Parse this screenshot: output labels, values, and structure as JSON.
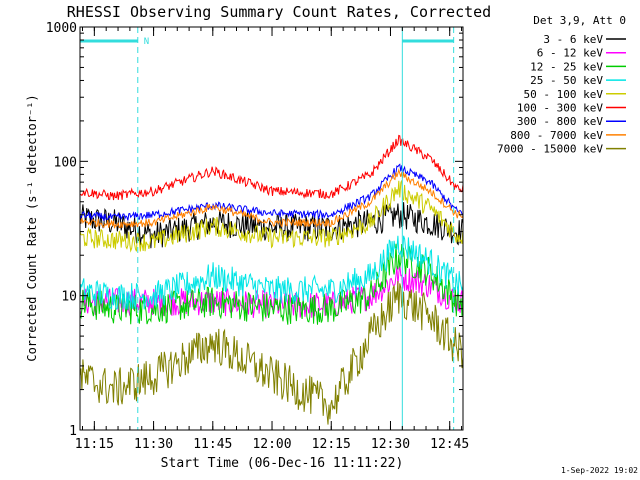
{
  "chart_data": {
    "type": "line",
    "title": "RHESSI Observing Summary Count Rates, Corrected",
    "xlabel": "Start Time (06-Dec-16 11:11:22)",
    "ylabel": "Corrected Count Rate (s⁻¹ detector⁻¹)",
    "y_scale": "log",
    "ylim": [
      1,
      1000
    ],
    "xlim_minutes_after_11_11_22": [
      0,
      97
    ],
    "x_ticks": [
      "11:15",
      "11:30",
      "11:45",
      "12:00",
      "12:15",
      "12:30",
      "12:45"
    ],
    "y_ticks": [
      "1",
      "10",
      "100",
      "1000"
    ],
    "legend_title": "Det 3,9, Att 0",
    "legend_position": "right",
    "footer": "1-Sep-2022 19:02",
    "flag_label": "N",
    "series": [
      {
        "name": "3 - 6 keV",
        "color": "#000000",
        "x": [
          "11:11",
          "11:20",
          "11:30",
          "11:45",
          "12:00",
          "12:15",
          "12:25",
          "12:32",
          "12:40",
          "12:47"
        ],
        "values": [
          38,
          35,
          28,
          35,
          32,
          32,
          35,
          40,
          35,
          30
        ]
      },
      {
        "name": "6 - 12 keV",
        "color": "#ff00ff",
        "x": [
          "11:11",
          "11:20",
          "11:30",
          "11:45",
          "12:00",
          "12:15",
          "12:25",
          "12:32",
          "12:40",
          "12:47"
        ],
        "values": [
          9,
          9,
          9,
          9,
          8.5,
          8.5,
          10,
          14,
          12,
          9
        ]
      },
      {
        "name": "12 - 25 keV",
        "color": "#00cc00",
        "x": [
          "11:11",
          "11:20",
          "11:30",
          "11:45",
          "12:00",
          "12:15",
          "12:25",
          "12:32",
          "12:40",
          "12:47"
        ],
        "values": [
          9,
          8,
          8,
          9,
          8,
          8,
          10,
          20,
          15,
          9
        ]
      },
      {
        "name": "25 - 50 keV",
        "color": "#00e5e5",
        "x": [
          "11:11",
          "11:20",
          "11:30",
          "11:45",
          "12:00",
          "12:15",
          "12:25",
          "12:32",
          "12:40",
          "12:47"
        ],
        "values": [
          11,
          10,
          10,
          14,
          11,
          11,
          14,
          25,
          18,
          12
        ]
      },
      {
        "name": "50 - 100 keV",
        "color": "#cccc00",
        "x": [
          "11:11",
          "11:20",
          "11:30",
          "11:45",
          "12:00",
          "12:15",
          "12:25",
          "12:32",
          "12:40",
          "12:47"
        ],
        "values": [
          27,
          26,
          25,
          33,
          27,
          27,
          35,
          63,
          45,
          28
        ]
      },
      {
        "name": "100 - 300 keV",
        "color": "#ff0000",
        "x": [
          "11:11",
          "11:20",
          "11:30",
          "11:45",
          "12:00",
          "12:15",
          "12:25",
          "12:32",
          "12:40",
          "12:47"
        ],
        "values": [
          60,
          55,
          60,
          85,
          60,
          57,
          80,
          145,
          105,
          62
        ]
      },
      {
        "name": "300 - 800 keV",
        "color": "#0000ff",
        "x": [
          "11:11",
          "11:20",
          "11:30",
          "11:45",
          "12:00",
          "12:15",
          "12:25",
          "12:32",
          "12:40",
          "12:47"
        ],
        "values": [
          40,
          38,
          40,
          47,
          41,
          40,
          55,
          90,
          70,
          42
        ]
      },
      {
        "name": "800 - 7000 keV",
        "color": "#ff8000",
        "x": [
          "11:11",
          "11:20",
          "11:30",
          "11:45",
          "12:00",
          "12:15",
          "12:25",
          "12:32",
          "12:40",
          "12:47"
        ],
        "values": [
          36,
          34,
          35,
          46,
          35,
          35,
          50,
          82,
          60,
          40
        ]
      },
      {
        "name": "7000 - 15000 keV",
        "color": "#808000",
        "x": [
          "11:11",
          "11:20",
          "11:30",
          "11:45",
          "12:00",
          "12:15",
          "12:25",
          "12:32",
          "12:40",
          "12:47"
        ],
        "values": [
          2.5,
          2.0,
          2.5,
          4.5,
          2.5,
          1.5,
          5,
          10,
          7,
          4
        ]
      }
    ],
    "markers": {
      "eclipse_bars": [
        [
          "11:11",
          "11:26"
        ],
        [
          "12:33",
          "12:46"
        ]
      ],
      "dashed_lines": [
        "11:26",
        "12:46"
      ],
      "solid_lines": [
        "12:33"
      ]
    }
  }
}
